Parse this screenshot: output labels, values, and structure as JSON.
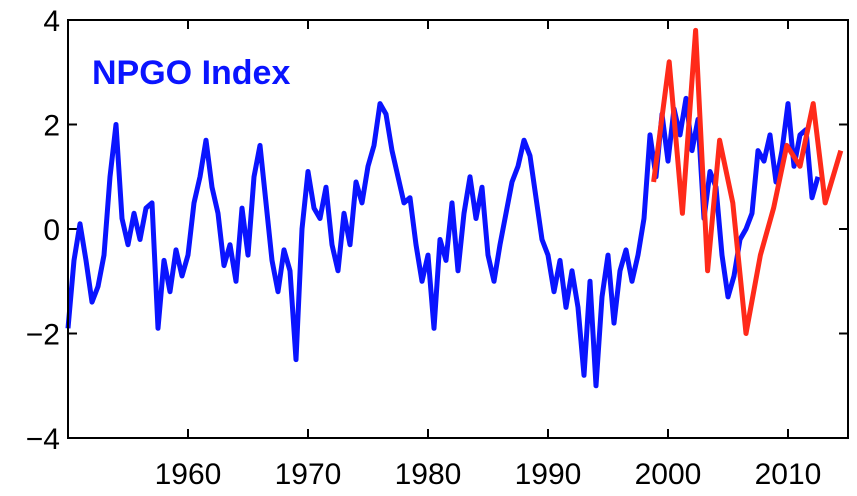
{
  "chart_data": {
    "type": "line",
    "title": "NPGO Index",
    "xlim": [
      1950,
      2015
    ],
    "ylim": [
      -4,
      4
    ],
    "xticks": [
      1960,
      1970,
      1980,
      1990,
      2000,
      2010
    ],
    "yticks": [
      {
        "value": -4,
        "label": "−4"
      },
      {
        "value": -2,
        "label": "−2"
      },
      0,
      2,
      4
    ],
    "series": [
      {
        "color": "#0a14ff",
        "x": [
          1950,
          1950.5,
          1951,
          1951.5,
          1952,
          1952.5,
          1953,
          1953.5,
          1954,
          1954.5,
          1955,
          1955.5,
          1956,
          1956.5,
          1957,
          1957.5,
          1958,
          1958.5,
          1959,
          1959.5,
          1960,
          1960.5,
          1961,
          1961.5,
          1962,
          1962.5,
          1963,
          1963.5,
          1964,
          1964.5,
          1965,
          1965.5,
          1966,
          1966.5,
          1967,
          1967.5,
          1968,
          1968.5,
          1969,
          1969.5,
          1970,
          1970.5,
          1971,
          1971.5,
          1972,
          1972.5,
          1973,
          1973.5,
          1974,
          1974.5,
          1975,
          1975.5,
          1976,
          1976.5,
          1977,
          1977.5,
          1978,
          1978.5,
          1979,
          1979.5,
          1980,
          1980.5,
          1981,
          1981.5,
          1982,
          1982.5,
          1983,
          1983.5,
          1984,
          1984.5,
          1985,
          1985.5,
          1986,
          1986.5,
          1987,
          1987.5,
          1988,
          1988.5,
          1989,
          1989.5,
          1990,
          1990.5,
          1991,
          1991.5,
          1992,
          1992.5,
          1993,
          1993.5,
          1994,
          1994.5,
          1995,
          1995.5,
          1996,
          1996.5,
          1997,
          1997.5,
          1998,
          1998.5,
          1999,
          1999.5,
          2000,
          2000.5,
          2001,
          2001.5,
          2002,
          2002.5,
          2003,
          2003.5,
          2004,
          2004.5,
          2005,
          2005.5,
          2006,
          2006.5,
          2007,
          2007.5,
          2008,
          2008.5,
          2009,
          2009.5,
          2010,
          2010.5,
          2011,
          2011.5,
          2012,
          2012.5
        ],
        "values": [
          -1.9,
          -0.6,
          0.1,
          -0.6,
          -1.4,
          -1.1,
          -0.5,
          1.0,
          2.0,
          0.2,
          -0.3,
          0.3,
          -0.2,
          0.4,
          0.5,
          -1.9,
          -0.6,
          -1.2,
          -0.4,
          -0.9,
          -0.5,
          0.5,
          1.0,
          1.7,
          0.8,
          0.3,
          -0.7,
          -0.3,
          -1.0,
          0.4,
          -0.5,
          1.0,
          1.6,
          0.5,
          -0.6,
          -1.2,
          -0.4,
          -0.8,
          -2.5,
          0.0,
          1.1,
          0.4,
          0.2,
          0.8,
          -0.3,
          -0.8,
          0.3,
          -0.3,
          0.9,
          0.5,
          1.2,
          1.6,
          2.4,
          2.2,
          1.5,
          1.0,
          0.5,
          0.6,
          -0.3,
          -1.0,
          -0.5,
          -1.9,
          -0.2,
          -0.6,
          0.5,
          -0.8,
          0.3,
          1.0,
          0.2,
          0.8,
          -0.5,
          -1.0,
          -0.3,
          0.3,
          0.9,
          1.2,
          1.7,
          1.4,
          0.6,
          -0.2,
          -0.5,
          -1.2,
          -0.6,
          -1.5,
          -0.8,
          -1.5,
          -2.8,
          -1.0,
          -3.0,
          -1.3,
          -0.5,
          -1.8,
          -0.8,
          -0.4,
          -1.0,
          -0.5,
          0.2,
          1.8,
          1.0,
          2.2,
          1.3,
          2.3,
          1.8,
          2.5,
          1.5,
          2.1,
          0.2,
          1.1,
          0.8,
          -0.5,
          -1.3,
          -0.9,
          -0.2,
          0.0,
          0.3,
          1.5,
          1.3,
          1.8,
          0.9,
          1.5,
          2.4,
          1.2,
          1.8,
          1.9,
          0.6,
          1.0
        ]
      },
      {
        "color": "#ff2a1a",
        "x": [
          1998.8,
          2000.1,
          2001.2,
          2002.3,
          2003.3,
          2004.3,
          2005.4,
          2006.5,
          2007.7,
          2008.8,
          2009.9,
          2011.0,
          2012.1,
          2013.1,
          2014.4
        ],
        "values": [
          0.9,
          3.2,
          0.3,
          3.8,
          -0.8,
          1.7,
          0.5,
          -2.0,
          -0.5,
          0.4,
          1.6,
          1.2,
          2.4,
          0.5,
          1.5
        ]
      }
    ]
  }
}
